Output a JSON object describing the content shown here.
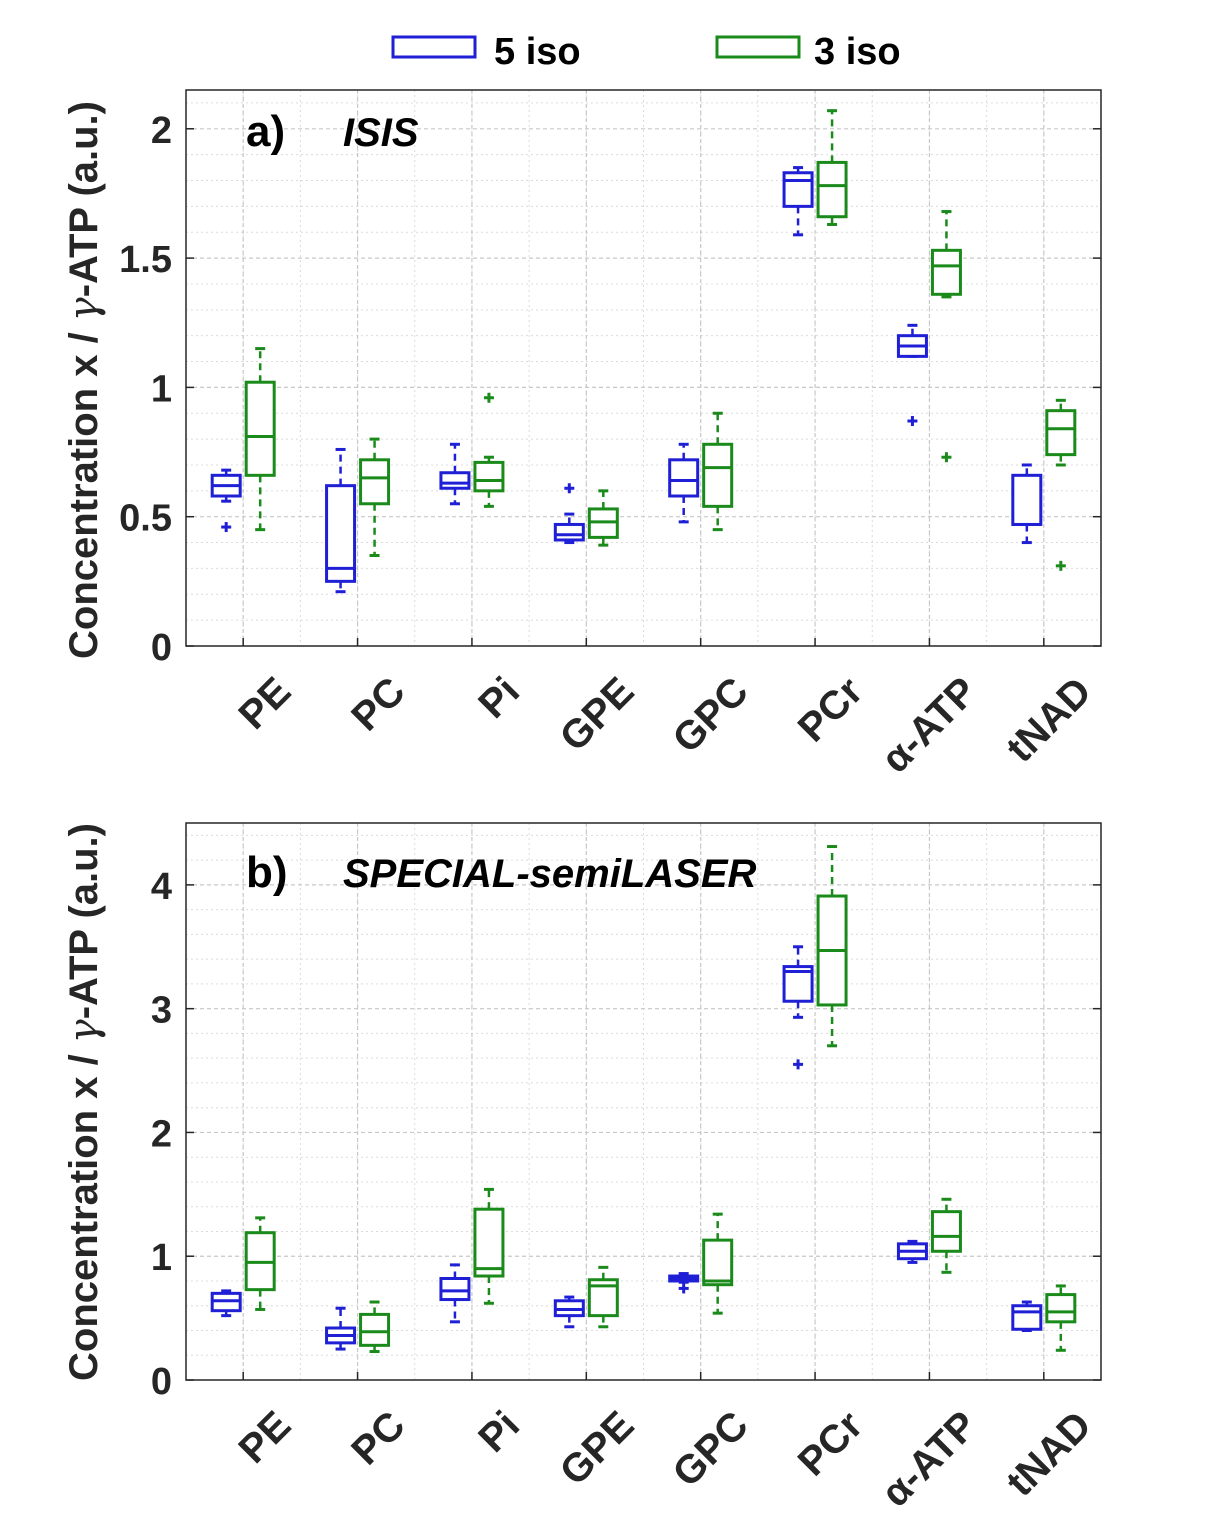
{
  "legend": {
    "items": [
      {
        "label": "5 iso",
        "color": "#1f1fd6"
      },
      {
        "label": "3 iso",
        "color": "#1a8a1a"
      }
    ]
  },
  "colors": {
    "iso5": "#1f1fd6",
    "iso3": "#1a8a1a",
    "grid": "#c8c8c8",
    "axis": "#262626"
  },
  "chart_data": [
    {
      "type": "box",
      "panel_label": "a)",
      "title": "ISIS",
      "ylabel": "Concentration x / γ-ATP (a.u.)",
      "ylabel_prefix": "Concentration x / ",
      "ylabel_greek": "γ",
      "ylabel_suffix": "-ATP (a.u.)",
      "ylim": [
        0,
        2.15
      ],
      "yticks": [
        0,
        0.5,
        1,
        1.5,
        2
      ],
      "ytick_labels": [
        "0",
        "0.5",
        "1",
        "1.5",
        "2"
      ],
      "minor_y_step": 0.1,
      "categories": [
        "PE",
        "PC",
        "Pi",
        "GPE",
        "GPC",
        "PCr",
        "α-ATP",
        "tNAD"
      ],
      "series": [
        {
          "name": "5 iso",
          "boxes": [
            {
              "wlo": 0.56,
              "q1": 0.58,
              "med": 0.62,
              "q3": 0.66,
              "whi": 0.68,
              "outliers": [
                0.46
              ]
            },
            {
              "wlo": 0.21,
              "q1": 0.25,
              "med": 0.3,
              "q3": 0.62,
              "whi": 0.76,
              "outliers": []
            },
            {
              "wlo": 0.55,
              "q1": 0.61,
              "med": 0.63,
              "q3": 0.67,
              "whi": 0.78,
              "outliers": []
            },
            {
              "wlo": 0.4,
              "q1": 0.41,
              "med": 0.43,
              "q3": 0.47,
              "whi": 0.51,
              "outliers": [
                0.61
              ]
            },
            {
              "wlo": 0.48,
              "q1": 0.58,
              "med": 0.64,
              "q3": 0.72,
              "whi": 0.78,
              "outliers": []
            },
            {
              "wlo": 1.59,
              "q1": 1.7,
              "med": 1.8,
              "q3": 1.83,
              "whi": 1.85,
              "outliers": []
            },
            {
              "wlo": 1.12,
              "q1": 1.12,
              "med": 1.16,
              "q3": 1.2,
              "whi": 1.24,
              "outliers": [
                0.87
              ]
            },
            {
              "wlo": 0.4,
              "q1": 0.47,
              "med": 0.47,
              "q3": 0.66,
              "whi": 0.7,
              "outliers": []
            }
          ]
        },
        {
          "name": "3 iso",
          "boxes": [
            {
              "wlo": 0.45,
              "q1": 0.66,
              "med": 0.81,
              "q3": 1.02,
              "whi": 1.15,
              "outliers": []
            },
            {
              "wlo": 0.35,
              "q1": 0.55,
              "med": 0.65,
              "q3": 0.72,
              "whi": 0.8,
              "outliers": []
            },
            {
              "wlo": 0.54,
              "q1": 0.6,
              "med": 0.64,
              "q3": 0.71,
              "whi": 0.73,
              "outliers": [
                0.96
              ]
            },
            {
              "wlo": 0.39,
              "q1": 0.42,
              "med": 0.48,
              "q3": 0.53,
              "whi": 0.6,
              "outliers": []
            },
            {
              "wlo": 0.45,
              "q1": 0.54,
              "med": 0.69,
              "q3": 0.78,
              "whi": 0.9,
              "outliers": []
            },
            {
              "wlo": 1.63,
              "q1": 1.66,
              "med": 1.78,
              "q3": 1.87,
              "whi": 2.07,
              "outliers": []
            },
            {
              "wlo": 1.35,
              "q1": 1.36,
              "med": 1.47,
              "q3": 1.53,
              "whi": 1.68,
              "outliers": [
                0.73
              ]
            },
            {
              "wlo": 0.7,
              "q1": 0.74,
              "med": 0.84,
              "q3": 0.91,
              "whi": 0.95,
              "outliers": [
                0.31
              ]
            }
          ]
        }
      ]
    },
    {
      "type": "box",
      "panel_label": "b)",
      "title": "SPECIAL-semiLASER",
      "ylabel": "Concentration x / γ-ATP (a.u.)",
      "ylabel_prefix": "Concentration x / ",
      "ylabel_greek": "γ",
      "ylabel_suffix": "-ATP (a.u.)",
      "ylim": [
        0,
        4.5
      ],
      "yticks": [
        0,
        1,
        2,
        3,
        4
      ],
      "ytick_labels": [
        "0",
        "1",
        "2",
        "3",
        "4"
      ],
      "minor_y_step": 0.2,
      "categories": [
        "PE",
        "PC",
        "Pi",
        "GPE",
        "GPC",
        "PCr",
        "α-ATP",
        "tNAD"
      ],
      "series": [
        {
          "name": "5 iso",
          "boxes": [
            {
              "wlo": 0.52,
              "q1": 0.56,
              "med": 0.64,
              "q3": 0.7,
              "whi": 0.72,
              "outliers": []
            },
            {
              "wlo": 0.25,
              "q1": 0.3,
              "med": 0.36,
              "q3": 0.42,
              "whi": 0.58,
              "outliers": []
            },
            {
              "wlo": 0.47,
              "q1": 0.65,
              "med": 0.72,
              "q3": 0.82,
              "whi": 0.93,
              "outliers": []
            },
            {
              "wlo": 0.43,
              "q1": 0.52,
              "med": 0.57,
              "q3": 0.64,
              "whi": 0.67,
              "outliers": []
            },
            {
              "wlo": 0.79,
              "q1": 0.8,
              "med": 0.82,
              "q3": 0.84,
              "whi": 0.86,
              "outliers": [
                0.74
              ]
            },
            {
              "wlo": 2.93,
              "q1": 3.06,
              "med": 3.3,
              "q3": 3.34,
              "whi": 3.5,
              "outliers": [
                2.55
              ]
            },
            {
              "wlo": 0.95,
              "q1": 0.98,
              "med": 1.04,
              "q3": 1.1,
              "whi": 1.12,
              "outliers": []
            },
            {
              "wlo": 0.4,
              "q1": 0.41,
              "med": 0.55,
              "q3": 0.6,
              "whi": 0.63,
              "outliers": []
            }
          ]
        },
        {
          "name": "3 iso",
          "boxes": [
            {
              "wlo": 0.57,
              "q1": 0.73,
              "med": 0.95,
              "q3": 1.19,
              "whi": 1.31,
              "outliers": []
            },
            {
              "wlo": 0.23,
              "q1": 0.28,
              "med": 0.39,
              "q3": 0.53,
              "whi": 0.63,
              "outliers": []
            },
            {
              "wlo": 0.62,
              "q1": 0.84,
              "med": 0.9,
              "q3": 1.38,
              "whi": 1.54,
              "outliers": []
            },
            {
              "wlo": 0.43,
              "q1": 0.52,
              "med": 0.76,
              "q3": 0.81,
              "whi": 0.91,
              "outliers": []
            },
            {
              "wlo": 0.54,
              "q1": 0.77,
              "med": 0.8,
              "q3": 1.13,
              "whi": 1.34,
              "outliers": []
            },
            {
              "wlo": 2.7,
              "q1": 3.03,
              "med": 3.47,
              "q3": 3.91,
              "whi": 4.31,
              "outliers": []
            },
            {
              "wlo": 0.87,
              "q1": 1.04,
              "med": 1.16,
              "q3": 1.36,
              "whi": 1.46,
              "outliers": []
            },
            {
              "wlo": 0.24,
              "q1": 0.47,
              "med": 0.55,
              "q3": 0.69,
              "whi": 0.76,
              "outliers": []
            }
          ]
        }
      ]
    }
  ]
}
